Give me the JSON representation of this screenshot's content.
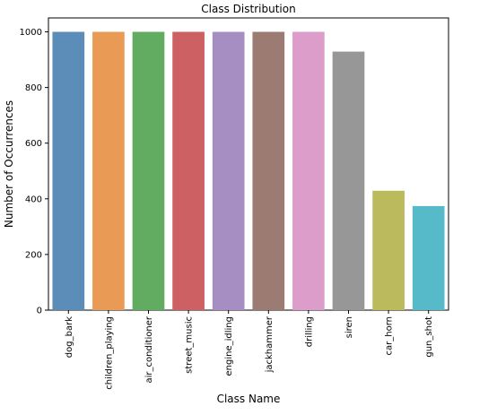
{
  "chart_data": {
    "type": "bar",
    "title": "Class Distribution",
    "xlabel": "Class Name",
    "ylabel": "Number of Occurrences",
    "categories": [
      "dog_bark",
      "children_playing",
      "air_conditioner",
      "street_music",
      "engine_idling",
      "jackhammer",
      "drilling",
      "siren",
      "car_horn",
      "gun_shot"
    ],
    "values": [
      1000,
      1000,
      1000,
      1000,
      1000,
      1000,
      1000,
      929,
      429,
      374
    ],
    "colors": [
      "#5b8db8",
      "#e99b55",
      "#62ac61",
      "#cc6063",
      "#a78ec2",
      "#9c7b72",
      "#dd9dcb",
      "#979797",
      "#bbbb5e",
      "#56bac9"
    ],
    "ylim": [
      0,
      1050
    ],
    "yticks": [
      0,
      200,
      400,
      600,
      800,
      1000
    ],
    "grid": false,
    "legend": "none"
  }
}
